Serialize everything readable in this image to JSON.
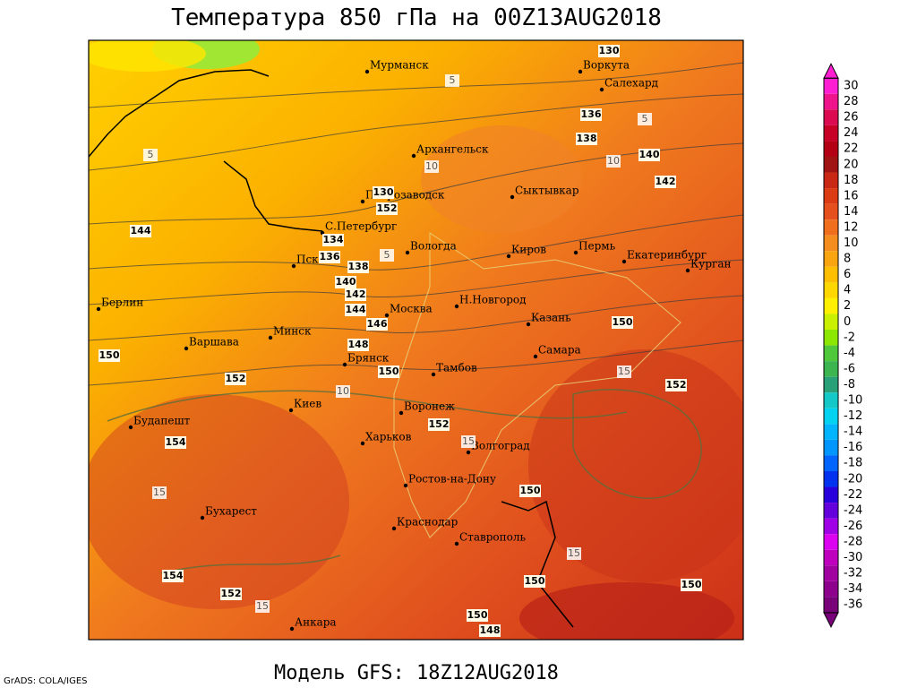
{
  "header": {
    "title": "Температура 850 гПа на 00Z13AUG2018"
  },
  "footer": {
    "model": "Модель GFS: 18Z12AUG2018",
    "credit": "GrADS: COLA/IGES"
  },
  "cities": [
    "Мурманск",
    "Воркута",
    "Салехард",
    "Архангельск",
    "Сыктывкар",
    "Петрозаводск",
    "С.Петербург",
    "Вологда",
    "Киров",
    "Пермь",
    "Екатеринбург",
    "Курган",
    "Псков",
    "Берлин",
    "Москва",
    "Н.Новгород",
    "Казань",
    "Варшава",
    "Минск",
    "Самара",
    "Брянск",
    "Тамбов",
    "Киев",
    "Воронеж",
    "Будапешт",
    "Харьков",
    "Волгоград",
    "Ростов-на-Дону",
    "Бухарест",
    "Краснодар",
    "Ставрополь",
    "Анкара"
  ],
  "contour_labels": [
    "130",
    "136",
    "138",
    "140",
    "142",
    "130",
    "152",
    "144",
    "134",
    "136",
    "138",
    "140",
    "142",
    "144",
    "146",
    "148",
    "150",
    "150",
    "152",
    "152",
    "154",
    "150",
    "150",
    "152",
    "154",
    "152",
    "150",
    "150",
    "150",
    "148",
    "5",
    "5",
    "10",
    "5",
    "10",
    "5",
    "10",
    "15",
    "15",
    "15",
    "15",
    "15"
  ],
  "colorbar": [
    {
      "label": "30",
      "color": "#ff1ed2"
    },
    {
      "label": "28",
      "color": "#f0148c"
    },
    {
      "label": "26",
      "color": "#dc0a50"
    },
    {
      "label": "24",
      "color": "#c80028"
    },
    {
      "label": "22",
      "color": "#b40014"
    },
    {
      "label": "20",
      "color": "#a01414"
    },
    {
      "label": "18",
      "color": "#c82814"
    },
    {
      "label": "16",
      "color": "#dc3c14"
    },
    {
      "label": "14",
      "color": "#e6501e"
    },
    {
      "label": "12",
      "color": "#f06e1e"
    },
    {
      "label": "10",
      "color": "#f58c1e"
    },
    {
      "label": "8",
      "color": "#faa50f"
    },
    {
      "label": "6",
      "color": "#ffbe00"
    },
    {
      "label": "4",
      "color": "#ffd700"
    },
    {
      "label": "2",
      "color": "#fff000"
    },
    {
      "label": "0",
      "color": "#c8f000"
    },
    {
      "label": "-2",
      "color": "#8ce600"
    },
    {
      "label": "-4",
      "color": "#50c83c"
    },
    {
      "label": "-6",
      "color": "#3cb450"
    },
    {
      "label": "-8",
      "color": "#28a078"
    },
    {
      "label": "-10",
      "color": "#14c8c8"
    },
    {
      "label": "-12",
      "color": "#00d2f0"
    },
    {
      "label": "-14",
      "color": "#00b4ff"
    },
    {
      "label": "-16",
      "color": "#0096ff"
    },
    {
      "label": "-18",
      "color": "#0064ff"
    },
    {
      "label": "-20",
      "color": "#0032f0"
    },
    {
      "label": "-22",
      "color": "#2800dc"
    },
    {
      "label": "-24",
      "color": "#6400dc"
    },
    {
      "label": "-26",
      "color": "#a000e6"
    },
    {
      "label": "-28",
      "color": "#dc00f0"
    },
    {
      "label": "-30",
      "color": "#be00be"
    },
    {
      "label": "-32",
      "color": "#a000a0"
    },
    {
      "label": "-34",
      "color": "#8c008c"
    },
    {
      "label": "-36",
      "color": "#780078"
    }
  ]
}
